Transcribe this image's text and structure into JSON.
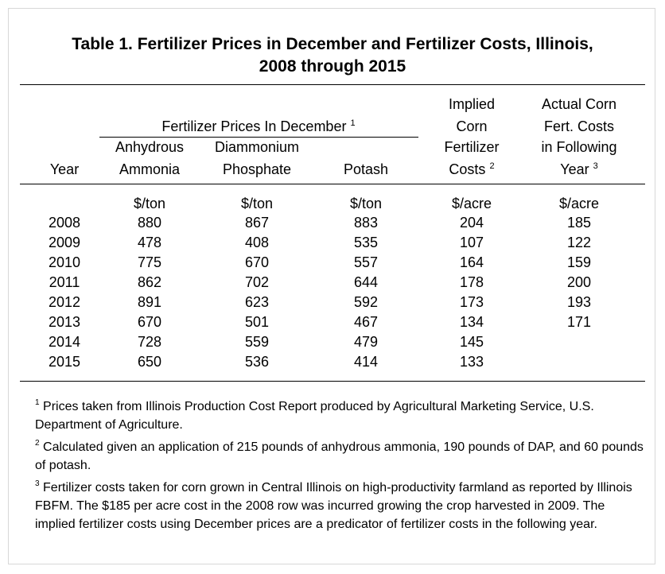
{
  "title": {
    "line1": "Table 1. Fertilizer Prices in December and Fertilizer Costs, Illinois,",
    "line2": "2008 through 2015"
  },
  "headers": {
    "group": "Fertilizer Prices In December",
    "group_sup": "1",
    "year": "Year",
    "anhydrous_l1": "Anhydrous",
    "anhydrous_l2": "Ammonia",
    "dap_l1": "Diammonium",
    "dap_l2": "Phosphate",
    "potash": "Potash",
    "implied_l1": "Implied",
    "implied_l2": "Corn",
    "implied_l3": "Fertilizer",
    "implied_l4": "Costs",
    "implied_sup": "2",
    "actual_l1": "Actual Corn",
    "actual_l2": "Fert. Costs",
    "actual_l3": "in Following",
    "actual_l4": "Year",
    "actual_sup": "3"
  },
  "units": {
    "anhydrous": "$/ton",
    "dap": "$/ton",
    "potash": "$/ton",
    "implied": "$/acre",
    "actual": "$/acre"
  },
  "rows": [
    {
      "year": "2008",
      "anhydrous": "880",
      "dap": "867",
      "potash": "883",
      "implied": "204",
      "actual": "185"
    },
    {
      "year": "2009",
      "anhydrous": "478",
      "dap": "408",
      "potash": "535",
      "implied": "107",
      "actual": "122"
    },
    {
      "year": "2010",
      "anhydrous": "775",
      "dap": "670",
      "potash": "557",
      "implied": "164",
      "actual": "159"
    },
    {
      "year": "2011",
      "anhydrous": "862",
      "dap": "702",
      "potash": "644",
      "implied": "178",
      "actual": "200"
    },
    {
      "year": "2012",
      "anhydrous": "891",
      "dap": "623",
      "potash": "592",
      "implied": "173",
      "actual": "193"
    },
    {
      "year": "2013",
      "anhydrous": "670",
      "dap": "501",
      "potash": "467",
      "implied": "134",
      "actual": "171"
    },
    {
      "year": "2014",
      "anhydrous": "728",
      "dap": "559",
      "potash": "479",
      "implied": "145",
      "actual": ""
    },
    {
      "year": "2015",
      "anhydrous": "650",
      "dap": "536",
      "potash": "414",
      "implied": "133",
      "actual": ""
    }
  ],
  "notes": [
    {
      "sup": "1",
      "text": "Prices taken from Illinois Production Cost Report produced by Agricultural Marketing Service, U.S. Department of Agriculture."
    },
    {
      "sup": "2",
      "text": "Calculated given an application of 215 pounds of anhydrous ammonia, 190 pounds of DAP, and 60 pounds of potash."
    },
    {
      "sup": "3",
      "text": "Fertilizer costs taken for corn grown in Central Illinois on high-productivity farmland as reported by Illinois FBFM. The $185 per acre cost in the 2008 row was incurred growing the crop harvested in 2009.  The implied fertilizer costs using December prices are a predicator of fertilizer costs in the following year."
    }
  ]
}
